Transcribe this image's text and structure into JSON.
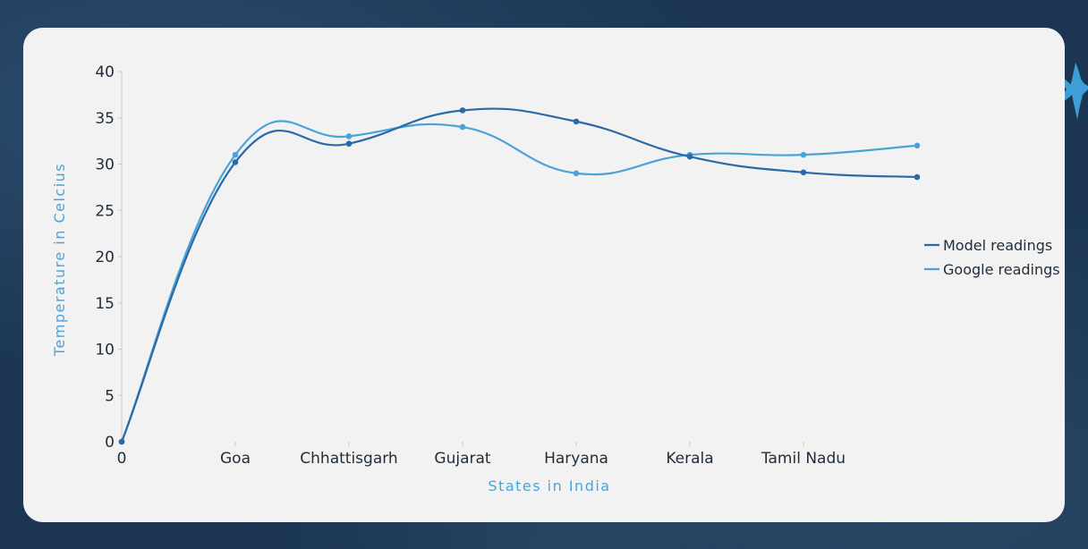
{
  "chart_data": {
    "type": "line",
    "xlabel": "States in India",
    "ylabel": "Temperature in Celcius",
    "categories": [
      "0",
      "Goa",
      "Chhattisgarh",
      "Gujarat",
      "Haryana",
      "Kerala",
      "Tamil Nadu",
      ""
    ],
    "ylim": [
      0,
      40
    ],
    "yticks": [
      "0",
      "5",
      "10",
      "15",
      "20",
      "25",
      "30",
      "35",
      "40"
    ],
    "grid": false,
    "legend_position": "right",
    "series": [
      {
        "name": "Model readings",
        "color": "#2b6aa6",
        "values": [
          0,
          30.2,
          32.2,
          35.8,
          34.6,
          30.8,
          29.1,
          28.6
        ]
      },
      {
        "name": "Google readings",
        "color": "#4aa3d8",
        "values": [
          0,
          31,
          33,
          34,
          29,
          31,
          31,
          32
        ]
      }
    ]
  },
  "decoration": {
    "star_color": "#3e9fd6"
  }
}
